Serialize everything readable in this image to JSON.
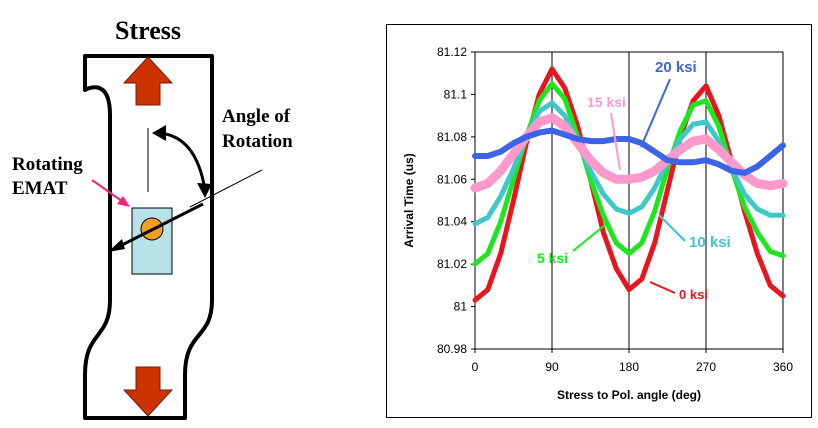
{
  "diagram": {
    "title": "Stress",
    "angle_label": [
      "Angle of",
      "Rotation"
    ],
    "emat_label": [
      "Rotating",
      "EMAT"
    ],
    "colors": {
      "arrow": "#cc3300",
      "emat_box": "#b8e2ea",
      "emat_disc": "#f0a020",
      "pointer_pink": "#ff1e78"
    }
  },
  "chart_data": {
    "type": "line",
    "title": "",
    "xlabel": "Stress to Pol. angle (deg)",
    "ylabel": "Arrival Time (us)",
    "xlim": [
      0,
      360
    ],
    "ylim": [
      80.98,
      81.12
    ],
    "xticks": [
      "0",
      "90",
      "180",
      "270",
      "360"
    ],
    "yticks": [
      "80.98",
      "81",
      "81.02",
      "81.04",
      "81.06",
      "81.08",
      "81.1",
      "81.12"
    ],
    "grid": {
      "vertical": true,
      "horizontal": false
    },
    "legend": "inline labels",
    "series": [
      {
        "name": "0 ksi",
        "color": "#e8141e",
        "x": [
          0,
          15,
          30,
          45,
          60,
          75,
          90,
          105,
          120,
          135,
          150,
          165,
          180,
          195,
          210,
          225,
          240,
          255,
          270,
          285,
          300,
          315,
          330,
          345,
          360
        ],
        "y": [
          81.003,
          81.008,
          81.025,
          81.05,
          81.077,
          81.1,
          81.112,
          81.103,
          81.085,
          81.06,
          81.035,
          81.018,
          81.008,
          81.013,
          81.03,
          81.055,
          81.08,
          81.097,
          81.104,
          81.09,
          81.068,
          81.045,
          81.025,
          81.01,
          81.005
        ]
      },
      {
        "name": "5 ksi",
        "color": "#1ee61e",
        "x": [
          0,
          15,
          30,
          45,
          60,
          75,
          90,
          105,
          120,
          135,
          150,
          165,
          180,
          195,
          210,
          225,
          240,
          255,
          270,
          285,
          300,
          315,
          330,
          345,
          360
        ],
        "y": [
          81.02,
          81.025,
          81.04,
          81.06,
          81.08,
          81.097,
          81.105,
          81.098,
          81.08,
          81.06,
          81.043,
          81.03,
          81.025,
          81.03,
          81.045,
          81.065,
          81.083,
          81.095,
          81.097,
          81.085,
          81.065,
          81.047,
          81.035,
          81.026,
          81.024
        ]
      },
      {
        "name": "10 ksi",
        "color": "#3ec8c8",
        "x": [
          0,
          15,
          30,
          45,
          60,
          75,
          90,
          105,
          120,
          135,
          150,
          165,
          180,
          195,
          210,
          225,
          240,
          255,
          270,
          285,
          300,
          315,
          330,
          345,
          360
        ],
        "y": [
          81.039,
          81.042,
          81.052,
          81.065,
          81.08,
          81.092,
          81.096,
          81.09,
          81.078,
          81.064,
          81.053,
          81.046,
          81.044,
          81.047,
          81.056,
          81.068,
          81.079,
          81.086,
          81.087,
          81.078,
          81.065,
          81.053,
          81.046,
          81.043,
          81.043
        ]
      },
      {
        "name": "15 ksi",
        "color": "#ff99cc",
        "x": [
          0,
          15,
          30,
          45,
          60,
          75,
          90,
          105,
          120,
          135,
          150,
          165,
          180,
          195,
          210,
          225,
          240,
          255,
          270,
          285,
          300,
          315,
          330,
          345,
          360
        ],
        "y": [
          81.056,
          81.058,
          81.064,
          81.072,
          81.08,
          81.087,
          81.089,
          81.085,
          81.077,
          81.069,
          81.063,
          81.06,
          81.06,
          81.061,
          81.064,
          81.069,
          81.074,
          81.078,
          81.079,
          81.074,
          81.068,
          81.062,
          81.058,
          81.057,
          81.058
        ]
      },
      {
        "name": "20 ksi",
        "color": "#3c64e6",
        "x": [
          0,
          15,
          30,
          45,
          60,
          75,
          90,
          105,
          120,
          135,
          150,
          165,
          180,
          195,
          210,
          225,
          240,
          255,
          270,
          285,
          300,
          315,
          330,
          345,
          360
        ],
        "y": [
          81.071,
          81.071,
          81.073,
          81.077,
          81.08,
          81.082,
          81.083,
          81.081,
          81.079,
          81.078,
          81.078,
          81.079,
          81.079,
          81.077,
          81.073,
          81.069,
          81.068,
          81.068,
          81.069,
          81.067,
          81.064,
          81.063,
          81.066,
          81.071,
          81.076
        ]
      }
    ],
    "annotations": [
      {
        "series": "20 ksi",
        "text": "20 ksi"
      },
      {
        "series": "15 ksi",
        "text": "15 ksi"
      },
      {
        "series": "10 ksi",
        "text": "10 ksi"
      },
      {
        "series": "5 ksi",
        "text": "5 ksi"
      },
      {
        "series": "0 ksi",
        "text": "0 ksi"
      }
    ]
  }
}
